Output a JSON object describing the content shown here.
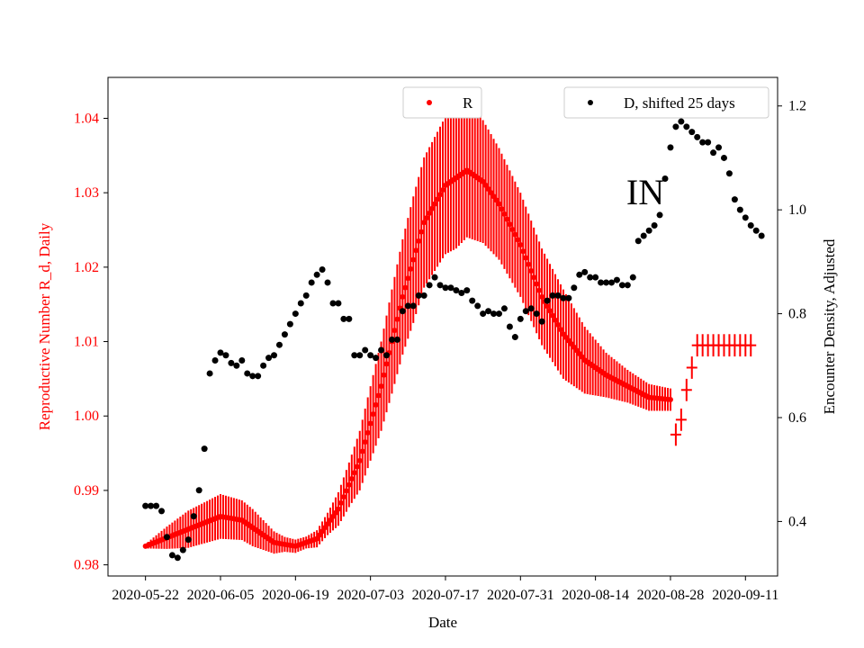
{
  "chart_data": {
    "type": "scatter",
    "annotation": "IN",
    "xlabel": "Date",
    "ylabel_left": "Reproductive Number R_d, Daily",
    "ylabel_right": "Encounter Density, Adjusted",
    "x_ticks": [
      "2020-05-22",
      "2020-06-05",
      "2020-06-19",
      "2020-07-03",
      "2020-07-17",
      "2020-07-31",
      "2020-08-14",
      "2020-08-28",
      "2020-09-11"
    ],
    "x_range_days": [
      -7,
      118
    ],
    "y_left_ticks": [
      "0.98",
      "0.99",
      "1.00",
      "1.01",
      "1.02",
      "1.03",
      "1.04"
    ],
    "y_left_range": [
      0.9785,
      1.0455
    ],
    "y_right_ticks": [
      "0.4",
      "0.6",
      "0.8",
      "1.0",
      "1.2"
    ],
    "y_right_range": [
      0.295,
      1.255
    ],
    "colors": {
      "R": "#ff0000",
      "D": "#000000",
      "axes": "#000000"
    },
    "legend_R": "R",
    "legend_D": "D, shifted 25 days",
    "series_R_dense_knots": [
      [
        0,
        0.9825
      ],
      [
        7,
        0.9845
      ],
      [
        14,
        0.9865
      ],
      [
        18,
        0.986
      ],
      [
        24,
        0.983
      ],
      [
        28,
        0.9825
      ],
      [
        32,
        0.9835
      ],
      [
        36,
        0.9875
      ],
      [
        40,
        0.994
      ],
      [
        44,
        1.004
      ],
      [
        48,
        1.016
      ],
      [
        52,
        1.026
      ],
      [
        56,
        1.031
      ],
      [
        60,
        1.033
      ],
      [
        63,
        1.0315
      ],
      [
        66,
        1.0285
      ],
      [
        70,
        1.023
      ],
      [
        74,
        1.016
      ],
      [
        78,
        1.011
      ],
      [
        82,
        1.0075
      ],
      [
        86,
        1.0055
      ],
      [
        90,
        1.004
      ],
      [
        94,
        1.0025
      ],
      [
        98,
        1.0022
      ]
    ],
    "series_R_dense_err_knots": [
      [
        0,
        0.0003
      ],
      [
        4,
        0.0015
      ],
      [
        8,
        0.0025
      ],
      [
        14,
        0.003
      ],
      [
        20,
        0.0025
      ],
      [
        26,
        0.001
      ],
      [
        30,
        0.0008
      ],
      [
        34,
        0.0015
      ],
      [
        38,
        0.003
      ],
      [
        42,
        0.005
      ],
      [
        46,
        0.007
      ],
      [
        50,
        0.0085
      ],
      [
        54,
        0.009
      ],
      [
        58,
        0.0095
      ],
      [
        62,
        0.0085
      ],
      [
        66,
        0.0075
      ],
      [
        70,
        0.007
      ],
      [
        74,
        0.0065
      ],
      [
        78,
        0.006
      ],
      [
        82,
        0.0045
      ],
      [
        86,
        0.003
      ],
      [
        90,
        0.0022
      ],
      [
        94,
        0.0018
      ],
      [
        98,
        0.0015
      ]
    ],
    "series_R_sparse": [
      {
        "day": 99,
        "r": 0.9975,
        "err": 0.0015
      },
      {
        "day": 100,
        "r": 0.9995,
        "err": 0.0015
      },
      {
        "day": 101,
        "r": 1.0035,
        "err": 0.0015
      },
      {
        "day": 102,
        "r": 1.0065,
        "err": 0.0015
      },
      {
        "day": 103,
        "r": 1.0095,
        "err": 0.0015
      },
      {
        "day": 104,
        "r": 1.0095,
        "err": 0.0015
      },
      {
        "day": 105,
        "r": 1.0095,
        "err": 0.0015
      },
      {
        "day": 106,
        "r": 1.0095,
        "err": 0.0015
      },
      {
        "day": 107,
        "r": 1.0095,
        "err": 0.0015
      },
      {
        "day": 108,
        "r": 1.0095,
        "err": 0.0015
      },
      {
        "day": 109,
        "r": 1.0095,
        "err": 0.0015
      },
      {
        "day": 110,
        "r": 1.0095,
        "err": 0.0015
      },
      {
        "day": 111,
        "r": 1.0095,
        "err": 0.0015
      },
      {
        "day": 112,
        "r": 1.0095,
        "err": 0.0015
      },
      {
        "day": 113,
        "r": 1.0095,
        "err": 0.0015
      }
    ],
    "series_D_shifted": [
      [
        0,
        0.43
      ],
      [
        1,
        0.43
      ],
      [
        2,
        0.43
      ],
      [
        3,
        0.42
      ],
      [
        4,
        0.37
      ],
      [
        5,
        0.335
      ],
      [
        6,
        0.33
      ],
      [
        7,
        0.345
      ],
      [
        8,
        0.365
      ],
      [
        9,
        0.41
      ],
      [
        10,
        0.46
      ],
      [
        11,
        0.54
      ],
      [
        12,
        0.685
      ],
      [
        13,
        0.71
      ],
      [
        14,
        0.725
      ],
      [
        15,
        0.72
      ],
      [
        16,
        0.705
      ],
      [
        17,
        0.7
      ],
      [
        18,
        0.71
      ],
      [
        19,
        0.685
      ],
      [
        20,
        0.68
      ],
      [
        21,
        0.68
      ],
      [
        22,
        0.7
      ],
      [
        23,
        0.715
      ],
      [
        24,
        0.72
      ],
      [
        25,
        0.74
      ],
      [
        26,
        0.76
      ],
      [
        27,
        0.78
      ],
      [
        28,
        0.8
      ],
      [
        29,
        0.82
      ],
      [
        30,
        0.835
      ],
      [
        31,
        0.86
      ],
      [
        32,
        0.875
      ],
      [
        33,
        0.885
      ],
      [
        34,
        0.86
      ],
      [
        35,
        0.82
      ],
      [
        36,
        0.82
      ],
      [
        37,
        0.79
      ],
      [
        38,
        0.79
      ],
      [
        39,
        0.72
      ],
      [
        40,
        0.72
      ],
      [
        41,
        0.73
      ],
      [
        42,
        0.72
      ],
      [
        43,
        0.715
      ],
      [
        44,
        0.73
      ],
      [
        45,
        0.72
      ],
      [
        46,
        0.75
      ],
      [
        47,
        0.75
      ],
      [
        48,
        0.805
      ],
      [
        49,
        0.815
      ],
      [
        50,
        0.815
      ],
      [
        51,
        0.835
      ],
      [
        52,
        0.835
      ],
      [
        53,
        0.855
      ],
      [
        54,
        0.87
      ],
      [
        55,
        0.855
      ],
      [
        56,
        0.85
      ],
      [
        57,
        0.85
      ],
      [
        58,
        0.845
      ],
      [
        59,
        0.84
      ],
      [
        60,
        0.845
      ],
      [
        61,
        0.825
      ],
      [
        62,
        0.815
      ],
      [
        63,
        0.8
      ],
      [
        64,
        0.805
      ],
      [
        65,
        0.8
      ],
      [
        66,
        0.8
      ],
      [
        67,
        0.81
      ],
      [
        68,
        0.775
      ],
      [
        69,
        0.755
      ],
      [
        70,
        0.79
      ],
      [
        71,
        0.805
      ],
      [
        72,
        0.81
      ],
      [
        73,
        0.8
      ],
      [
        74,
        0.785
      ],
      [
        75,
        0.825
      ],
      [
        76,
        0.835
      ],
      [
        77,
        0.835
      ],
      [
        78,
        0.83
      ],
      [
        79,
        0.83
      ],
      [
        80,
        0.85
      ],
      [
        81,
        0.875
      ],
      [
        82,
        0.88
      ],
      [
        83,
        0.87
      ],
      [
        84,
        0.87
      ],
      [
        85,
        0.86
      ],
      [
        86,
        0.86
      ],
      [
        87,
        0.86
      ],
      [
        88,
        0.865
      ],
      [
        89,
        0.855
      ],
      [
        90,
        0.855
      ],
      [
        91,
        0.87
      ],
      [
        92,
        0.94
      ],
      [
        93,
        0.95
      ],
      [
        94,
        0.96
      ],
      [
        95,
        0.97
      ],
      [
        96,
        0.99
      ],
      [
        97,
        1.06
      ],
      [
        98,
        1.12
      ],
      [
        99,
        1.16
      ],
      [
        100,
        1.17
      ],
      [
        101,
        1.16
      ],
      [
        102,
        1.15
      ],
      [
        103,
        1.14
      ],
      [
        104,
        1.13
      ],
      [
        105,
        1.13
      ],
      [
        106,
        1.11
      ],
      [
        107,
        1.12
      ],
      [
        108,
        1.1
      ],
      [
        109,
        1.07
      ],
      [
        110,
        1.02
      ],
      [
        111,
        1.0
      ],
      [
        112,
        0.985
      ],
      [
        113,
        0.97
      ],
      [
        114,
        0.96
      ],
      [
        115,
        0.95
      ]
    ]
  }
}
